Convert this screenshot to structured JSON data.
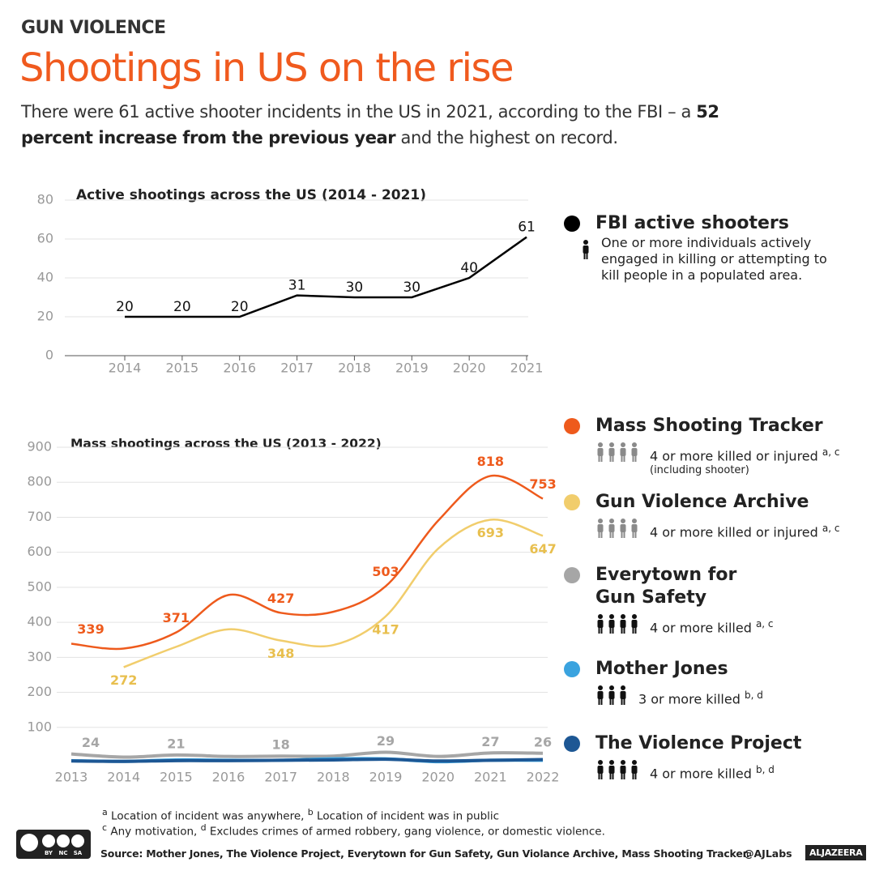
{
  "header": {
    "kicker": "GUN VIOLENCE",
    "title": "Shootings in US on the rise",
    "subtitle": [
      "There were 61 active shooter incidents in the US in 2021, according to the FBI – a ",
      "52 percent increase from the previous year",
      " and the highest on record."
    ]
  },
  "chart_data": [
    {
      "type": "line",
      "title": "Active shootings across the US (2014 - 2021)",
      "categories": [
        "2014",
        "2015",
        "2016",
        "2017",
        "2018",
        "2019",
        "2020",
        "2021"
      ],
      "series": [
        {
          "name": "FBI active shooters",
          "color": "#000000",
          "description": "One or more individuals actively engaged in killing or attempting to kill people in a populated area.",
          "values": [
            20,
            20,
            20,
            31,
            30,
            30,
            40,
            61
          ],
          "value_labels": [
            "20",
            "20",
            "20",
            "31",
            "30",
            "30",
            "40",
            "61"
          ]
        }
      ],
      "ylim": [
        0,
        80
      ],
      "yticks": [
        0,
        20,
        40,
        60,
        80
      ],
      "grid": true
    },
    {
      "type": "line",
      "title": "Mass shootings across the US (2013 - 2022)",
      "categories": [
        "2013",
        "2014",
        "2015",
        "2016",
        "2017",
        "2018",
        "2019",
        "2020",
        "2021",
        "2022"
      ],
      "series": [
        {
          "name": "Mass Shooting Tracker",
          "color": "#ee5a1c",
          "description": "4 or more killed or injured",
          "notes": "a, c",
          "detail": "(including shooter)",
          "values": [
            339,
            325,
            371,
            478,
            427,
            430,
            503,
            690,
            818,
            753
          ],
          "value_labels": [
            "339",
            null,
            "371",
            null,
            "427",
            null,
            "503",
            null,
            "818",
            "753"
          ]
        },
        {
          "name": "Gun Violence Archive",
          "color": "#f1cd6c",
          "description": "4 or more killed or injured",
          "notes": "a, c",
          "values": [
            null,
            272,
            330,
            380,
            348,
            335,
            417,
            610,
            693,
            647
          ],
          "value_labels": [
            null,
            "272",
            null,
            null,
            "348",
            null,
            "417",
            null,
            "693",
            "647"
          ]
        },
        {
          "name": "Everytown for Gun Safety",
          "color": "#a6a6a6",
          "description": "4 or more killed",
          "notes": "a, c",
          "values": [
            24,
            15,
            21,
            17,
            18,
            18,
            29,
            17,
            27,
            26
          ],
          "value_labels": [
            "24",
            null,
            "21",
            null,
            "18",
            null,
            "29",
            null,
            "27",
            "26"
          ]
        },
        {
          "name": "Mother Jones",
          "color": "#3aa3df",
          "description": "3 or more killed",
          "notes": "b, d",
          "values": [
            5,
            3,
            7,
            6,
            6,
            10,
            10,
            2,
            6,
            6
          ]
        },
        {
          "name": "The Violence Project",
          "color": "#1d5794",
          "description": "4 or more killed",
          "notes": "b, d",
          "values": [
            4,
            3,
            5,
            5,
            6,
            7,
            9,
            4,
            6,
            8
          ]
        }
      ],
      "ylim": [
        0,
        900
      ],
      "yticks": [
        100,
        200,
        300,
        400,
        500,
        600,
        700,
        800,
        900
      ],
      "grid": true
    }
  ],
  "footnotes": [
    {
      "mark": "a",
      "text": "Location of incident was anywhere,"
    },
    {
      "mark": "b",
      "text": "Location of incident was in public"
    },
    {
      "mark": "c",
      "text": "Any motivation,"
    },
    {
      "mark": "d",
      "text": "Excludes crimes of armed robbery, gang violence, or domestic violence."
    }
  ],
  "source": "Source: Mother Jones, The Violence Project, Everytown for Gun Safety, Gun Violance Archive, Mass Shooting Tracker.",
  "credit": "@AJLabs",
  "logo": "ALJAZEERA",
  "license": [
    "BY",
    "NC",
    "SA"
  ]
}
